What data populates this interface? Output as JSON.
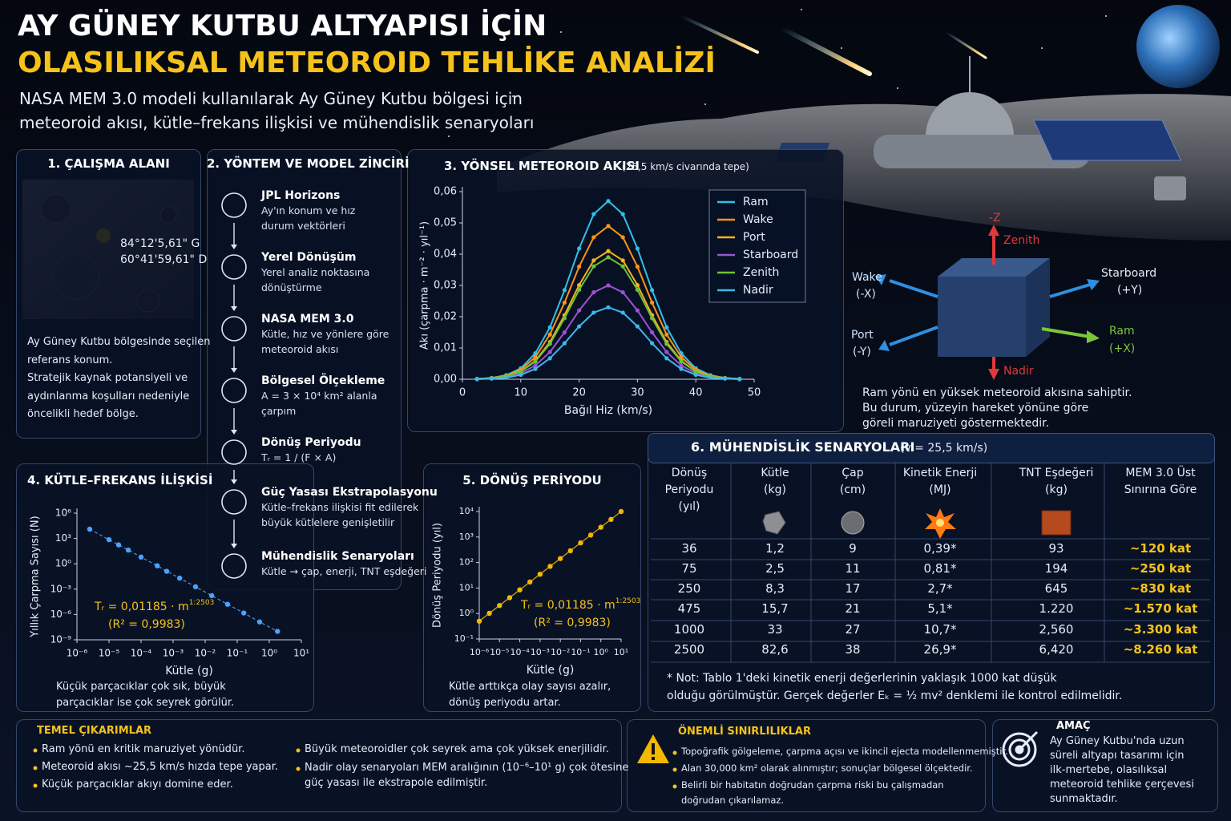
{
  "header": {
    "title_line1": "AY GÜNEY KUTBU ALTYAPISI İÇİN",
    "title_line2": "OLASILIKSAL METEOROID TEHLİKE ANALİZİ",
    "subtitle": [
      "NASA MEM 3.0 modeli kullanılarak Ay Güney Kutbu bölgesi için",
      "meteoroid akısı, kütle–frekans ilişkisi ve mühendislik senaryoları"
    ]
  },
  "study_area": {
    "title": "1. ÇALIŞMA ALANI",
    "lat": "84°12'5,61\" G",
    "lon": "60°41'59,61\" D",
    "description": [
      "Ay Güney Kutbu bölgesinde seçilen",
      "referans konum.",
      "Stratejik kaynak potansiyeli ve",
      "aydınlanma koşulları nedeniyle",
      "öncelikli hedef bölge."
    ]
  },
  "method": {
    "title": "2. YÖNTEM VE MODEL ZİNCİRİ",
    "steps": [
      {
        "title": "JPL Horizons",
        "lines": [
          "Ay'ın konum ve hız",
          "durum vektörleri"
        ]
      },
      {
        "title": "Yerel Dönüşüm",
        "lines": [
          "Yerel analiz noktasına",
          "dönüştürme"
        ]
      },
      {
        "title": "NASA MEM 3.0",
        "lines": [
          "Kütle, hız ve yönlere göre",
          "meteoroid akısı"
        ]
      },
      {
        "title": "Bölgesel Ölçekleme",
        "lines": [
          "A = 3 × 10⁴ km² alanla",
          "çarpım"
        ]
      },
      {
        "title": "Dönüş Periyodu",
        "lines": [
          "Tᵣ = 1 / (F × A)"
        ]
      },
      {
        "title": "Güç Yasası Ekstrapolasyonu",
        "lines": [
          "Kütle–frekans ilişkisi fit edilerek",
          "büyük kütlelere genişletilir"
        ]
      },
      {
        "title": "Mühendislik Senaryoları",
        "lines": [
          "Kütle → çap, enerji, TNT eşdeğeri"
        ]
      }
    ]
  },
  "orientation": {
    "minus_z": "-Z",
    "zenith": "Zenith",
    "wake": "Wake",
    "wake_axis": "(-X)",
    "starboard": "Starboard",
    "starboard_axis": "(+Y)",
    "port": "Port",
    "port_axis": "(-Y)",
    "ram": "Ram",
    "ram_axis": "(+X)",
    "nadir": "Nadir",
    "note": [
      "Ram yönü en yüksek meteoroid akısına sahiptir.",
      "Bu durum, yüzeyin hareket yönüne göre",
      "göreli maruziyeti göstermektedir."
    ]
  },
  "chart_data": [
    {
      "type": "line",
      "title": "3. YÖNSEL METEOROID AKISI",
      "subtitle": "(25,5 km/s civarında tepe)",
      "x_label": "Bağıl Hiz (km/s)",
      "y_label": "Akı (çarpma · m⁻² · yıl⁻¹)",
      "x": [
        2.5,
        5,
        7.5,
        10,
        12.5,
        15,
        17.5,
        20,
        22.5,
        25,
        27.5,
        30,
        32.5,
        35,
        37.5,
        40,
        42.5,
        45,
        47.5
      ],
      "xlim": [
        0,
        50
      ],
      "xticks": [
        0,
        10,
        20,
        30,
        40,
        50
      ],
      "ylim": [
        0,
        0.06
      ],
      "yticks": [
        {
          "value": 0,
          "label": "0,00"
        },
        {
          "value": 0.01,
          "label": "0,01"
        },
        {
          "value": 0.02,
          "label": "0,02"
        },
        {
          "value": 0.03,
          "label": "0,03"
        },
        {
          "value": 0.04,
          "label": "0,04"
        },
        {
          "value": 0.05,
          "label": "0,05"
        },
        {
          "value": 0.06,
          "label": "0,06"
        }
      ],
      "legend": "upper right",
      "series": [
        {
          "name": "Ram",
          "color": "#2fc0ea",
          "values": [
            0.0001,
            0.0004,
            0.0013,
            0.0035,
            0.0083,
            0.0166,
            0.0285,
            0.0418,
            0.0528,
            0.057,
            0.0528,
            0.0418,
            0.0285,
            0.0166,
            0.0083,
            0.0035,
            0.0013,
            0.0004,
            0.0001
          ]
        },
        {
          "name": "Wake",
          "color": "#ff9416",
          "values": [
            0.0001,
            0.0004,
            0.0011,
            0.003,
            0.0071,
            0.0143,
            0.0245,
            0.036,
            0.0454,
            0.049,
            0.0454,
            0.036,
            0.0245,
            0.0143,
            0.0071,
            0.003,
            0.0011,
            0.0004,
            0.0001
          ]
        },
        {
          "name": "Port",
          "color": "#f7b21e",
          "values": [
            0.0001,
            0.0003,
            0.0009,
            0.0025,
            0.0059,
            0.0119,
            0.0205,
            0.0301,
            0.038,
            0.041,
            0.038,
            0.0301,
            0.0205,
            0.0119,
            0.0059,
            0.0025,
            0.0009,
            0.0003,
            0.0001
          ]
        },
        {
          "name": "Starboard",
          "color": "#9b52d6",
          "values": [
            0.0001,
            0.0002,
            0.0007,
            0.0019,
            0.0044,
            0.0087,
            0.015,
            0.022,
            0.0278,
            0.03,
            0.0278,
            0.022,
            0.015,
            0.0087,
            0.0044,
            0.0019,
            0.0007,
            0.0002,
            0.0001
          ]
        },
        {
          "name": "Zenith",
          "color": "#6cc23a",
          "values": [
            0.0001,
            0.0003,
            0.0009,
            0.0024,
            0.0057,
            0.0113,
            0.0195,
            0.0286,
            0.0361,
            0.039,
            0.0361,
            0.0286,
            0.0195,
            0.0113,
            0.0057,
            0.0024,
            0.0009,
            0.0003,
            0.0001
          ]
        },
        {
          "name": "Nadir",
          "color": "#3fb7ec",
          "values": [
            0,
            0.0002,
            0.0005,
            0.0014,
            0.0033,
            0.0067,
            0.0115,
            0.0169,
            0.0213,
            0.023,
            0.0213,
            0.0169,
            0.0115,
            0.0067,
            0.0033,
            0.0014,
            0.0005,
            0.0002,
            0
          ]
        }
      ]
    },
    {
      "type": "scatter",
      "title": "4. KÜTLE–FREKANS İLİŞKİSİ",
      "x_label": "Kütle (g)",
      "y_label": "Yıllık Çarpma Sayısı (N)",
      "fit_text": "Tᵣ = 0,01185 · m",
      "fit_exponent": "1:2503",
      "r2": "(R² = 0,9983)",
      "caption": [
        "Küçük parçacıklar çok sık, büyük",
        "parçacıklar ise çok seyrek görülür."
      ],
      "xscale": "log",
      "yscale": "log",
      "color": "#4aa3ff",
      "x": [
        2.5e-06,
        1e-05,
        2e-05,
        4e-05,
        0.0001,
        0.00032,
        0.00063,
        0.0016,
        0.005,
        0.016,
        0.05,
        0.16,
        0.5,
        1.8
      ],
      "values": [
        12600,
        724,
        174,
        42,
        6.2,
        0.58,
        0.13,
        0.02,
        0.0019,
        0.00017,
        1.6e-05,
        1.5e-06,
        1.3e-07,
        1e-08
      ],
      "xlim": [
        1e-06,
        10
      ],
      "xticks": [
        {
          "value": 1e-06,
          "label": "10⁻⁶"
        },
        {
          "value": 1e-05,
          "label": "10⁻⁵"
        },
        {
          "value": 0.0001,
          "label": "10⁻⁴"
        },
        {
          "value": 0.001,
          "label": "10⁻³"
        },
        {
          "value": 0.01,
          "label": "10⁻²"
        },
        {
          "value": 0.1,
          "label": "10⁻¹"
        },
        {
          "value": 1,
          "label": "10⁰"
        },
        {
          "value": 10,
          "label": "10¹"
        }
      ],
      "ylim": [
        1e-09,
        1000000
      ],
      "yticks": [
        {
          "value": 1e-09,
          "label": "10⁻⁹"
        },
        {
          "value": 1e-06,
          "label": "10⁻⁶"
        },
        {
          "value": 0.001,
          "label": "10⁻³"
        },
        {
          "value": 1,
          "label": "10⁰"
        },
        {
          "value": 1000,
          "label": "10³"
        },
        {
          "value": 1000000,
          "label": "10⁶"
        }
      ]
    },
    {
      "type": "scatter",
      "title": "5. DÖNÜŞ PERİYODU",
      "x_label": "Kütle (g)",
      "y_label": "Dönüş Periyodu (yıl)",
      "fit_text": "Tᵣ = 0,01185 · m",
      "fit_exponent": "1:2503",
      "r2": "(R² = 0,9983)",
      "caption": [
        "Kütle arttıkça olay sayısı azalır,",
        "dönüş periyodu artar."
      ],
      "xscale": "log",
      "yscale": "log",
      "color": "#f5b800",
      "x": [
        1e-06,
        3.16e-06,
        1e-05,
        3.16e-05,
        0.0001,
        0.000316,
        0.001,
        0.00316,
        0.01,
        0.0316,
        0.1,
        0.316,
        1,
        3.16,
        10
      ],
      "values": [
        0.5,
        1.02,
        2.06,
        4.18,
        8.47,
        17.2,
        34.8,
        70.6,
        143,
        290,
        589,
        1194,
        2421,
        4909,
        10000
      ],
      "xlim": [
        1e-06,
        10
      ],
      "xticks": [
        {
          "value": 1e-06,
          "label": "10⁻⁶"
        },
        {
          "value": 1e-05,
          "label": "10⁻⁵"
        },
        {
          "value": 0.0001,
          "label": "10⁻⁴"
        },
        {
          "value": 0.001,
          "label": "10⁻³"
        },
        {
          "value": 0.01,
          "label": "10⁻²"
        },
        {
          "value": 0.1,
          "label": "10⁻¹"
        },
        {
          "value": 1,
          "label": "10⁰"
        },
        {
          "value": 10,
          "label": "10¹"
        }
      ],
      "ylim": [
        0.1,
        10000
      ],
      "yticks": [
        {
          "value": 0.1,
          "label": "10⁻¹"
        },
        {
          "value": 1,
          "label": "10⁰"
        },
        {
          "value": 10,
          "label": "10¹"
        },
        {
          "value": 100,
          "label": "10²"
        },
        {
          "value": 1000,
          "label": "10³"
        },
        {
          "value": 10000,
          "label": "10⁴"
        }
      ]
    }
  ],
  "scenarios": {
    "title": "6. MÜHENDİSLİK SENARYOLARI",
    "subtitle": "(v = 25,5 km/s)",
    "headers": [
      [
        "Dönüş",
        "Periyodu",
        "(yıl)"
      ],
      [
        "Kütle",
        "(kg)"
      ],
      [
        "Çap",
        "(cm)"
      ],
      [
        "Kinetik Enerji",
        "(MJ)"
      ],
      [
        "TNT Eşdeğeri",
        "(kg)"
      ],
      [
        "MEM 3.0 Üst",
        "Sınırına Göre"
      ]
    ],
    "rows": [
      [
        "36",
        "1,2",
        "9",
        "0,39*",
        "93",
        "~120 kat"
      ],
      [
        "75",
        "2,5",
        "11",
        "0,81*",
        "194",
        "~250 kat"
      ],
      [
        "250",
        "8,3",
        "17",
        "2,7*",
        "645",
        "~830 kat"
      ],
      [
        "475",
        "15,7",
        "21",
        "5,1*",
        "1.220",
        "~1.570 kat"
      ],
      [
        "1000",
        "33",
        "27",
        "10,7*",
        "2,560",
        "~3.300 kat"
      ],
      [
        "2500",
        "82,6",
        "38",
        "26,9*",
        "6,420",
        "~8.260 kat"
      ]
    ],
    "note": [
      "* Not: Tablo 1'deki kinetik enerji değerlerinin yaklaşık 1000 kat düşük",
      "olduğu görülmüştür. Gerçek değerler Eₖ = ½ mv² denklemi ile kontrol edilmelidir."
    ]
  },
  "takeaways": {
    "title": "TEMEL ÇIKARIMLAR",
    "left": [
      [
        "Ram yönü en kritik maruziyet yönüdür."
      ],
      [
        "Meteoroid akısı ~25,5 km/s hızda tepe yapar."
      ],
      [
        "Küçük parçacıklar akıyı domine eder."
      ]
    ],
    "right": [
      [
        "Büyük meteoroidler çok seyrek ama çok yüksek enerjilidir."
      ],
      [
        "Nadir olay senaryoları MEM aralığının (10⁻⁶–10¹ g) çok ötesine",
        "güç yasası ile ekstrapole edilmiştir."
      ]
    ]
  },
  "limitations": {
    "title": "ÖNEMLİ SINIRLILIKLAR",
    "items": [
      [
        "Topoğrafik gölgeleme, çarpma açısı ve ikincil ejecta modellenmemiştir."
      ],
      [
        "Alan 30,000 km² olarak alınmıştır; sonuçlar bölgesel ölçektedir."
      ],
      [
        "Belirli bir habitatın doğrudan çarpma riski bu çalışmadan",
        "doğrudan çıkarılamaz."
      ]
    ]
  },
  "aim": {
    "title": "AMAÇ",
    "lines": [
      "Ay Güney Kutbu'nda uzun",
      "süreli altyapı tasarımı için",
      "ilk-mertebe, olasılıksal",
      "meteoroid tehlike çerçevesi",
      "sunmaktadır."
    ]
  }
}
